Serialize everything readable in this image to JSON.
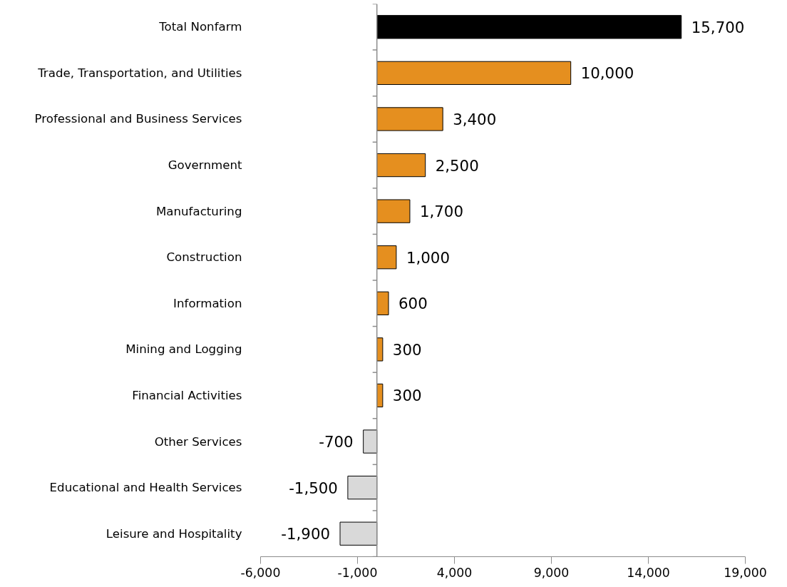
{
  "chart_data": {
    "type": "bar",
    "orientation": "horizontal",
    "categories": [
      "Total Nonfarm",
      "Trade, Transportation, and Utilities",
      "Professional and Business Services",
      "Government",
      "Manufacturing",
      "Construction",
      "Information",
      "Mining and Logging",
      "Financial Activities",
      "Other Services",
      "Educational and Health Services",
      "Leisure and Hospitality"
    ],
    "values": [
      15700,
      10000,
      3400,
      2500,
      1700,
      1000,
      600,
      300,
      300,
      -700,
      -1500,
      -1900
    ],
    "value_labels": [
      "15,700",
      "10,000",
      "3,400",
      "2,500",
      "1,700",
      "1,000",
      "600",
      "300",
      "300",
      "-700",
      "-1,500",
      "-1,900"
    ],
    "colors": [
      "#000000",
      "#e58f1f",
      "#e58f1f",
      "#e58f1f",
      "#e58f1f",
      "#e58f1f",
      "#e58f1f",
      "#e58f1f",
      "#e58f1f",
      "#d9d9d9",
      "#d9d9d9",
      "#d9d9d9"
    ],
    "xlim": [
      -6000,
      19000
    ],
    "xticks": [
      {
        "value": -6000,
        "label": "-6,000"
      },
      {
        "value": -1000,
        "label": "-1,000"
      },
      {
        "value": 4000,
        "label": "4,000"
      },
      {
        "value": 9000,
        "label": "9,000"
      },
      {
        "value": 14000,
        "label": "14,000"
      },
      {
        "value": 19000,
        "label": "19,000"
      }
    ],
    "grid": false
  }
}
